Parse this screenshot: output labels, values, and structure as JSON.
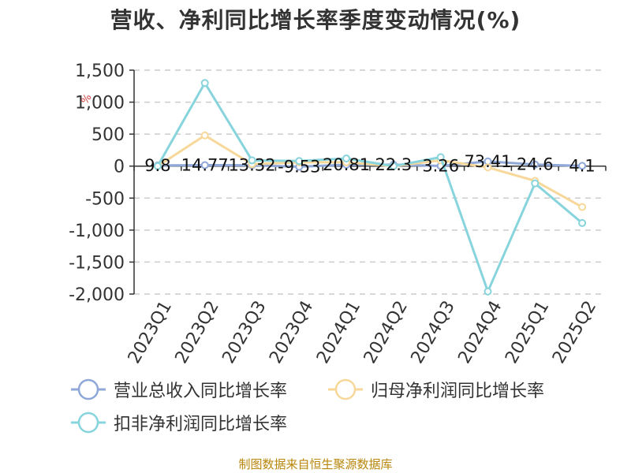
{
  "chart_data": {
    "type": "line",
    "title": "营收、净利同比增长率季度变动情况(%)",
    "ylabel": "%",
    "categories": [
      "2023Q1",
      "2023Q2",
      "2023Q3",
      "2023Q4",
      "2024Q1",
      "2024Q2",
      "2024Q3",
      "2024Q4",
      "2025Q1",
      "2025Q2"
    ],
    "series": [
      {
        "name": "营业总收入同比增长率",
        "color": "#8fa8d8",
        "values": [
          9.8,
          14.77,
          13.32,
          -9.53,
          20.81,
          22.3,
          3.26,
          73.41,
          24.6,
          4.1
        ],
        "labels": [
          "9.8",
          "14.77",
          "13.32",
          "-9.53",
          "20.81",
          "22.3",
          "3.26",
          "73.41",
          "24.6",
          "4.1"
        ]
      },
      {
        "name": "归母净利润同比增长率",
        "color": "#f7d89a",
        "values": [
          0,
          480,
          30,
          60,
          60,
          0,
          90,
          -20,
          -230,
          -640
        ]
      },
      {
        "name": "扣非净利润同比增长率",
        "color": "#88d4dc",
        "values": [
          0,
          1300,
          90,
          80,
          120,
          0,
          140,
          -1960,
          -270,
          -890
        ]
      }
    ],
    "ylim": [
      -2000,
      1500
    ],
    "yticks": [
      1500,
      1000,
      500,
      0,
      -500,
      -1000,
      -1500,
      -2000
    ],
    "ytick_labels": [
      "1,500",
      "1,000",
      "500",
      "0",
      "-500",
      "-1,000",
      "-1,500",
      "-2,000"
    ],
    "grid": true,
    "legend_position": "bottom"
  },
  "source_note": "制图数据来自恒生聚源数据库"
}
